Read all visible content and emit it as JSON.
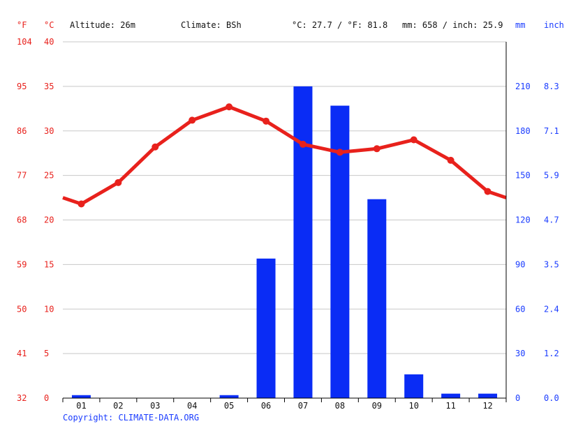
{
  "header": {
    "altitude": "Altitude: 26m",
    "climate": "Climate: BSh",
    "temp_summary": "°C: 27.7 / °F: 81.8",
    "precip_summary": "mm: 658 / inch: 25.9"
  },
  "units": {
    "fahrenheit": "°F",
    "celsius": "°C",
    "mm": "mm",
    "inch": "inch"
  },
  "copyright": "Copyright: CLIMATE-DATA.ORG",
  "colors": {
    "temperature": "#e8211c",
    "precipitation": "#0a2cf5",
    "text": "#111111"
  },
  "chart_data": {
    "type": "bar",
    "categories": [
      "01",
      "02",
      "03",
      "04",
      "05",
      "06",
      "07",
      "08",
      "09",
      "10",
      "11",
      "12"
    ],
    "series": [
      {
        "type": "bar",
        "unit": "mm",
        "values": [
          2,
          0,
          0,
          0,
          2,
          94,
          210,
          197,
          134,
          16,
          3,
          3
        ]
      },
      {
        "type": "line",
        "unit": "°C",
        "values": [
          21.8,
          24.2,
          28.2,
          31.2,
          32.7,
          31.1,
          28.5,
          27.6,
          28.0,
          29.0,
          26.7,
          23.2
        ]
      }
    ],
    "axes": {
      "fahrenheit_ticks": [
        "104",
        "95",
        "86",
        "77",
        "68",
        "59",
        "50",
        "41",
        "32"
      ],
      "celsius_ticks": [
        "40",
        "35",
        "30",
        "25",
        "20",
        "15",
        "10",
        "5",
        "0"
      ],
      "mm_ticks": [
        "210",
        "180",
        "150",
        "120",
        "90",
        "60",
        "30",
        "0"
      ],
      "inch_ticks": [
        "8.3",
        "7.1",
        "5.9",
        "4.7",
        "3.5",
        "2.4",
        "1.2",
        "0.0"
      ]
    },
    "celsius_range": [
      0,
      40
    ],
    "mm_range": [
      0,
      240
    ],
    "grid": true
  }
}
